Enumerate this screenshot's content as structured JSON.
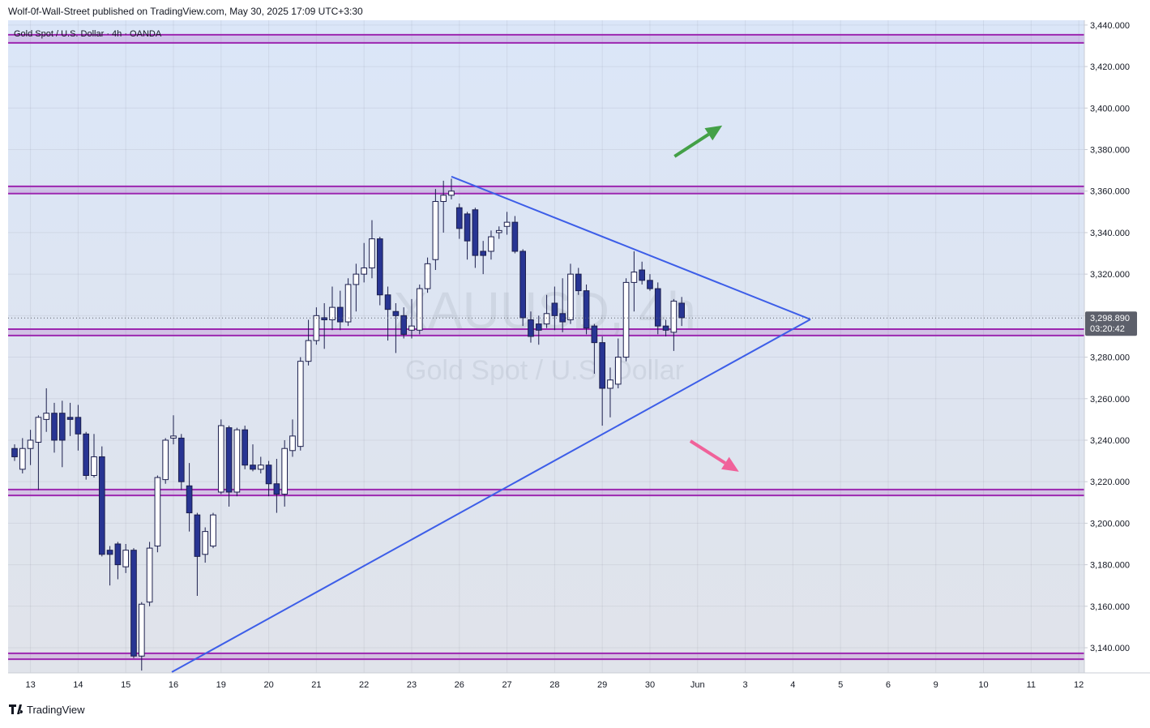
{
  "header": "Wolf-0f-Wall-Street published on TradingView.com, May 30, 2025 17:09 UTC+3:30",
  "footer": "TradingView",
  "chart_data": {
    "type": "candlestick",
    "title": "Gold Spot / U.S. Dollar · 4h · OANDA",
    "watermark": "XAUUSD, 4h",
    "watermark_subtitle": "Gold Spot / U.S. Dollar",
    "x": [
      0,
      1,
      2,
      3,
      4,
      5,
      6,
      7,
      8,
      9,
      10,
      11,
      12,
      13,
      14,
      15,
      16,
      17,
      18,
      19,
      20,
      21,
      22,
      23,
      24,
      25,
      26,
      27,
      28,
      29,
      30,
      31,
      32,
      33,
      34,
      35,
      36,
      37,
      38,
      39,
      40,
      41,
      42,
      43,
      44,
      45,
      46,
      47,
      48,
      49,
      50,
      51,
      52,
      53,
      54,
      55,
      56,
      57,
      58,
      59,
      60,
      61,
      62,
      63,
      64,
      65,
      66,
      67,
      68,
      69,
      70,
      71,
      72,
      73,
      74,
      75,
      76,
      77,
      78,
      79,
      80,
      81,
      82,
      83,
      84
    ],
    "open": [
      3236,
      3226,
      3236,
      3239,
      3250,
      3253,
      3253,
      3251,
      3251,
      3243,
      3223,
      3232,
      3187,
      3190,
      3179,
      3187,
      3136,
      3162,
      3189,
      3221,
      3241,
      3241,
      3218,
      3204,
      3185,
      3189,
      3215,
      3246,
      3215,
      3245,
      3228,
      3226,
      3228,
      3219,
      3214,
      3235,
      3237,
      3278,
      3288,
      3299,
      3298,
      3304,
      3297,
      3315,
      3320,
      3323,
      3337,
      3310,
      3302,
      3300,
      3293,
      3293,
      3313,
      3327,
      3355,
      3358,
      3352,
      3349,
      3351,
      3331,
      3331,
      3340,
      3343,
      3345,
      3331,
      3298,
      3296,
      3296,
      3306,
      3301,
      3298,
      3320,
      3312,
      3295,
      3287,
      3265,
      3267,
      3280,
      3316,
      3322,
      3317,
      3313,
      3295,
      3292,
      3306
    ],
    "high": [
      3238,
      3241,
      3245,
      3252,
      3265,
      3258,
      3259,
      3258,
      3257,
      3244,
      3243,
      3237,
      3189,
      3191,
      3190,
      3188,
      3162,
      3191,
      3223,
      3241,
      3252,
      3243,
      3229,
      3205,
      3198,
      3205,
      3250,
      3247,
      3246,
      3247,
      3238,
      3232,
      3230,
      3231,
      3240,
      3250,
      3280,
      3298,
      3304,
      3306,
      3314,
      3312,
      3318,
      3325,
      3335,
      3346,
      3338,
      3314,
      3306,
      3304,
      3308,
      3315,
      3328,
      3361,
      3365,
      3366,
      3354,
      3350,
      3352,
      3336,
      3341,
      3343,
      3350,
      3348,
      3332,
      3302,
      3300,
      3310,
      3314,
      3318,
      3325,
      3323,
      3315,
      3296,
      3290,
      3275,
      3289,
      3318,
      3331,
      3326,
      3320,
      3316,
      3298,
      3308,
      3309
    ],
    "low": [
      3230,
      3224,
      3228,
      3216,
      3244,
      3234,
      3227,
      3242,
      3235,
      3221,
      3222,
      3184,
      3170,
      3173,
      3176,
      3135,
      3129,
      3160,
      3186,
      3219,
      3238,
      3216,
      3196,
      3165,
      3181,
      3188,
      3214,
      3208,
      3213,
      3226,
      3225,
      3224,
      3213,
      3205,
      3208,
      3232,
      3235,
      3276,
      3286,
      3284,
      3293,
      3293,
      3295,
      3302,
      3316,
      3318,
      3305,
      3288,
      3282,
      3289,
      3289,
      3291,
      3311,
      3322,
      3340,
      3356,
      3337,
      3327,
      3323,
      3320,
      3327,
      3337,
      3339,
      3330,
      3295,
      3287,
      3286,
      3294,
      3293,
      3292,
      3296,
      3310,
      3291,
      3272,
      3247,
      3251,
      3265,
      3278,
      3302,
      3315,
      3312,
      3291,
      3290,
      3283,
      3295
    ],
    "close": [
      3232,
      3236,
      3240,
      3251,
      3253,
      3240,
      3240,
      3250,
      3243,
      3223,
      3232,
      3185,
      3185,
      3180,
      3187,
      3136,
      3161,
      3188,
      3222,
      3240,
      3242,
      3220,
      3205,
      3184,
      3196,
      3204,
      3247,
      3215,
      3245,
      3228,
      3226,
      3228,
      3219,
      3214,
      3236,
      3242,
      3278,
      3288,
      3300,
      3298,
      3304,
      3297,
      3315,
      3320,
      3323,
      3337,
      3310,
      3303,
      3300,
      3291,
      3295,
      3313,
      3325,
      3355,
      3358,
      3360,
      3342,
      3336,
      3329,
      3329,
      3338,
      3341,
      3345,
      3331,
      3299,
      3290,
      3293,
      3301,
      3300,
      3297,
      3320,
      3312,
      3294,
      3287,
      3265,
      3269,
      3280,
      3316,
      3321,
      3317,
      3313,
      3295,
      3293,
      3307,
      3299
    ],
    "up_color": "#ffffff",
    "down_color": "#283593",
    "wick_color": "#1c1f4d",
    "xlim": [
      -0.816,
      134.7
    ],
    "xticks": [
      {
        "value": 2,
        "label": "13"
      },
      {
        "value": 8,
        "label": "14"
      },
      {
        "value": 14,
        "label": "15"
      },
      {
        "value": 20,
        "label": "16"
      },
      {
        "value": 26,
        "label": "19"
      },
      {
        "value": 32,
        "label": "20"
      },
      {
        "value": 38,
        "label": "21"
      },
      {
        "value": 44,
        "label": "22"
      },
      {
        "value": 50,
        "label": "23"
      },
      {
        "value": 56,
        "label": "26"
      },
      {
        "value": 62,
        "label": "27"
      },
      {
        "value": 68,
        "label": "28"
      },
      {
        "value": 74,
        "label": "29"
      },
      {
        "value": 80,
        "label": "30"
      },
      {
        "value": 86,
        "label": "Jun"
      },
      {
        "value": 92,
        "label": "3"
      },
      {
        "value": 98,
        "label": "4"
      },
      {
        "value": 104,
        "label": "5"
      },
      {
        "value": 110,
        "label": "6"
      },
      {
        "value": 116,
        "label": "9"
      },
      {
        "value": 122,
        "label": "10"
      },
      {
        "value": 128,
        "label": "11"
      },
      {
        "value": 134,
        "label": "12"
      }
    ],
    "ylim": [
      3127.9,
      3442.3
    ],
    "yticks": [
      {
        "value": 3140,
        "label": "3,140.000"
      },
      {
        "value": 3160,
        "label": "3,160.000"
      },
      {
        "value": 3180,
        "label": "3,180.000"
      },
      {
        "value": 3200,
        "label": "3,200.000"
      },
      {
        "value": 3220,
        "label": "3,220.000"
      },
      {
        "value": 3240,
        "label": "3,240.000"
      },
      {
        "value": 3260,
        "label": "3,260.000"
      },
      {
        "value": 3280,
        "label": "3,280.000"
      },
      {
        "value": 3300,
        "label": "3,300.000"
      },
      {
        "value": 3320,
        "label": "3,320.000"
      },
      {
        "value": 3340,
        "label": "3,340.000"
      },
      {
        "value": 3360,
        "label": "3,360.000"
      },
      {
        "value": 3380,
        "label": "3,380.000"
      },
      {
        "value": 3400,
        "label": "3,400.000"
      },
      {
        "value": 3420,
        "label": "3,420.000"
      },
      {
        "value": 3440,
        "label": "3,440.000"
      }
    ],
    "grid": true,
    "last_price": {
      "value": 3298.89,
      "label": "3,298.890"
    },
    "countdown": "03:20:42",
    "zone_color": "#9c27b0",
    "zones": [
      [
        3431.4,
        3435.3
      ],
      [
        3358.8,
        3362.3
      ],
      [
        3290.4,
        3293.5
      ],
      [
        3213.4,
        3216.2
      ],
      [
        3134.5,
        3137.3
      ]
    ],
    "trend_color": "#3d5ee8",
    "trendlines": [
      {
        "x": [
          55.0,
          100.2
        ],
        "y": [
          3367,
          3298.2
        ]
      },
      {
        "x": [
          19.8,
          100.2
        ],
        "y": [
          3128.3,
          3298.2
        ]
      }
    ],
    "arrows": [
      {
        "color": "#43a047",
        "x": [
          83.1,
          89.1
        ],
        "y": [
          3376.7,
          3391.6
        ]
      },
      {
        "color": "#f0629a",
        "x": [
          85.1,
          91.2
        ],
        "y": [
          3239.6,
          3224.8
        ]
      }
    ]
  }
}
